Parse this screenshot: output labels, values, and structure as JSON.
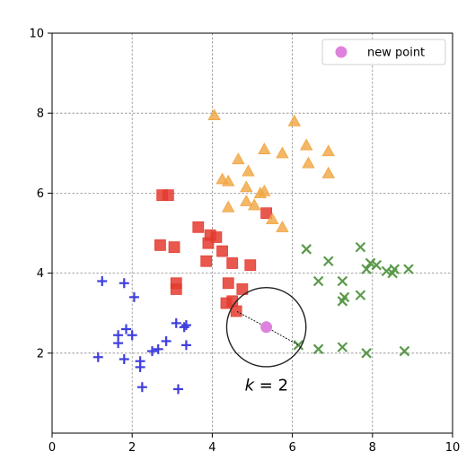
{
  "chart_data": {
    "type": "scatter",
    "xlim": [
      0,
      10
    ],
    "ylim": [
      0,
      10
    ],
    "xticks": [
      "0",
      "2",
      "4",
      "6",
      "8",
      "10"
    ],
    "yticks": [
      "2",
      "4",
      "6",
      "8",
      "10"
    ],
    "grid": true,
    "legend_position": "top-right",
    "series": [
      {
        "marker": "plus",
        "color": "#3f3fdf",
        "points": [
          [
            1.25,
            3.8
          ],
          [
            1.8,
            3.75
          ],
          [
            2.05,
            3.4
          ],
          [
            1.85,
            2.6
          ],
          [
            1.65,
            2.45
          ],
          [
            2.0,
            2.45
          ],
          [
            1.65,
            2.25
          ],
          [
            1.15,
            1.9
          ],
          [
            1.8,
            1.85
          ],
          [
            2.2,
            1.8
          ],
          [
            2.2,
            1.65
          ],
          [
            2.5,
            2.05
          ],
          [
            2.65,
            2.1
          ],
          [
            2.85,
            2.3
          ],
          [
            2.25,
            1.15
          ],
          [
            3.1,
            2.75
          ],
          [
            3.3,
            2.65
          ],
          [
            3.35,
            2.7
          ],
          [
            3.35,
            2.2
          ],
          [
            3.15,
            1.1
          ]
        ]
      },
      {
        "marker": "square",
        "color": "#e43b2f",
        "points": [
          [
            2.75,
            5.95
          ],
          [
            2.9,
            5.95
          ],
          [
            2.7,
            4.7
          ],
          [
            3.05,
            4.65
          ],
          [
            3.1,
            3.75
          ],
          [
            3.1,
            3.6
          ],
          [
            3.65,
            5.15
          ],
          [
            3.95,
            4.95
          ],
          [
            4.1,
            4.9
          ],
          [
            3.9,
            4.75
          ],
          [
            4.25,
            4.55
          ],
          [
            3.85,
            4.3
          ],
          [
            4.5,
            4.25
          ],
          [
            4.95,
            4.2
          ],
          [
            4.4,
            3.75
          ],
          [
            4.75,
            3.6
          ],
          [
            4.35,
            3.25
          ],
          [
            4.5,
            3.3
          ],
          [
            4.6,
            3.05
          ],
          [
            5.35,
            5.5
          ]
        ]
      },
      {
        "marker": "triangle",
        "color": "#f0a540",
        "points": [
          [
            4.05,
            7.95
          ],
          [
            6.05,
            7.8
          ],
          [
            6.35,
            7.2
          ],
          [
            6.9,
            7.05
          ],
          [
            5.3,
            7.1
          ],
          [
            5.75,
            7.0
          ],
          [
            4.65,
            6.85
          ],
          [
            6.4,
            6.75
          ],
          [
            4.9,
            6.55
          ],
          [
            6.9,
            6.5
          ],
          [
            4.25,
            6.35
          ],
          [
            4.4,
            6.3
          ],
          [
            4.85,
            6.15
          ],
          [
            5.2,
            6.0
          ],
          [
            5.3,
            6.05
          ],
          [
            4.85,
            5.8
          ],
          [
            5.05,
            5.7
          ],
          [
            4.4,
            5.65
          ],
          [
            5.5,
            5.35
          ],
          [
            5.75,
            5.15
          ]
        ]
      },
      {
        "marker": "x",
        "color": "#5a9a4a",
        "points": [
          [
            6.35,
            4.6
          ],
          [
            7.7,
            4.65
          ],
          [
            6.9,
            4.3
          ],
          [
            7.95,
            4.25
          ],
          [
            8.1,
            4.2
          ],
          [
            7.85,
            4.1
          ],
          [
            8.35,
            4.05
          ],
          [
            8.55,
            4.1
          ],
          [
            8.5,
            4.0
          ],
          [
            8.9,
            4.1
          ],
          [
            6.65,
            3.8
          ],
          [
            7.25,
            3.8
          ],
          [
            7.7,
            3.45
          ],
          [
            7.3,
            3.4
          ],
          [
            7.25,
            3.3
          ],
          [
            6.15,
            2.2
          ],
          [
            6.65,
            2.1
          ],
          [
            7.25,
            2.15
          ],
          [
            7.85,
            2.0
          ],
          [
            8.8,
            2.05
          ]
        ]
      }
    ],
    "new_point": {
      "name": "new point",
      "x": 5.35,
      "y": 2.65,
      "color": "#dd82dd"
    },
    "neighbor_lines": [
      [
        5.35,
        2.65,
        4.6,
        3.05
      ],
      [
        5.35,
        2.65,
        6.15,
        2.2
      ]
    ],
    "neighborhood_radius": 0.99,
    "annotation": {
      "text": "k = 2",
      "x": 5.35,
      "y": 1.2
    }
  }
}
